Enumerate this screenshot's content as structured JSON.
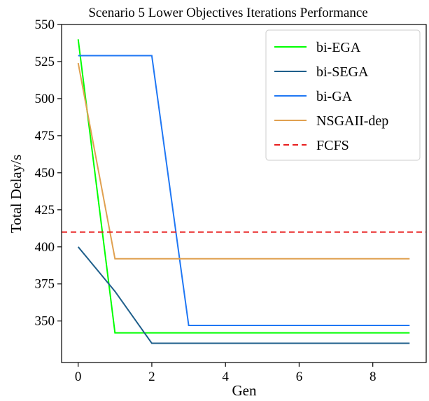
{
  "chart_data": {
    "type": "line",
    "title": "Scenario 5 Lower Objectives Iterations Performance",
    "xlabel": "Gen",
    "ylabel": "Total Delay/s",
    "xlim": [
      -0.45,
      9.45
    ],
    "ylim": [
      322,
      550
    ],
    "x_ticks": [
      0,
      2,
      4,
      6,
      8
    ],
    "y_ticks": [
      350,
      375,
      400,
      425,
      450,
      475,
      500,
      525,
      550
    ],
    "grid": false,
    "legend_position": "top-right",
    "x": [
      0,
      1,
      2,
      3,
      4,
      5,
      6,
      7,
      8,
      9
    ],
    "series": [
      {
        "name": "bi-EGA",
        "color": "#00ff00",
        "style": "solid",
        "values": [
          540,
          342,
          342,
          342,
          342,
          342,
          342,
          342,
          342,
          342
        ]
      },
      {
        "name": "bi-SEGA",
        "color": "#1f5f8b",
        "style": "solid",
        "values": [
          400,
          370,
          335,
          335,
          335,
          335,
          335,
          335,
          335,
          335
        ]
      },
      {
        "name": "bi-GA",
        "color": "#1f77f4",
        "style": "solid",
        "values": [
          529,
          529,
          529,
          347,
          347,
          347,
          347,
          347,
          347,
          347
        ]
      },
      {
        "name": "NSGAII-dep",
        "color": "#e0a050",
        "style": "solid",
        "values": [
          524,
          392,
          392,
          392,
          392,
          392,
          392,
          392,
          392,
          392
        ]
      },
      {
        "name": "FCFS",
        "color": "#e81e1e",
        "style": "dashed",
        "type": "hline",
        "value": 410
      }
    ]
  }
}
